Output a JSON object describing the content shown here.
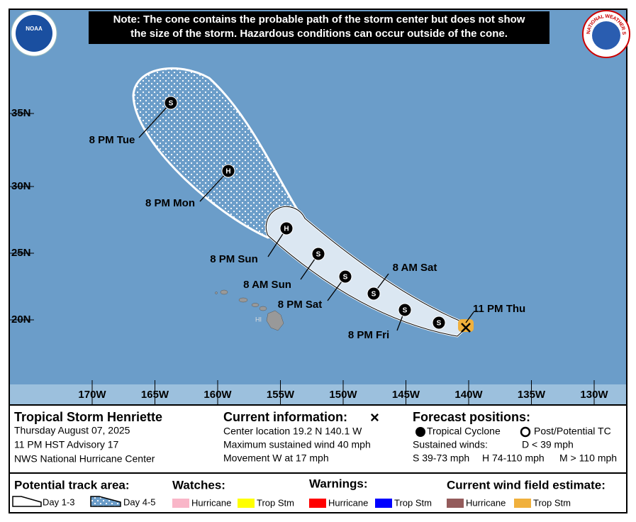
{
  "header": {
    "note": [
      "Note: The cone contains the probable path of the storm center but does not show",
      "the size of the storm. Hazardous conditions can occur outside of the cone."
    ],
    "noaa_logo": "NOAA",
    "nws_logo": "NATIONAL WEATHER SERVICE"
  },
  "map": {
    "lat_labels": [
      "35N",
      "30N",
      "25N",
      "20N"
    ],
    "lon_labels": [
      "170W",
      "165W",
      "160W",
      "155W",
      "150W",
      "145W",
      "140W",
      "135W",
      "130W"
    ],
    "island_label": "HI",
    "points": [
      {
        "time": "8 PM Tue",
        "symbol": "S"
      },
      {
        "time": "8 PM Mon",
        "symbol": "H"
      },
      {
        "time": "8 PM Sun",
        "symbol": "H"
      },
      {
        "time": "8 AM Sun",
        "symbol": "S"
      },
      {
        "time": "8 PM Sat",
        "symbol": "S"
      },
      {
        "time": "8 AM Sat",
        "symbol": "S"
      },
      {
        "time": "8 PM Fri",
        "symbol": "S"
      },
      {
        "time": null,
        "symbol": "S"
      }
    ],
    "current_time": "11 PM Thu"
  },
  "info": {
    "storm": "Tropical Storm Henriette",
    "date": "Thursday August 07, 2025",
    "advisory": "11 PM HST Advisory 17",
    "center": "NWS National Hurricane Center"
  },
  "current": {
    "title": "Current information:",
    "symbol": "×",
    "lines": [
      "Center location 19.2 N 140.1 W",
      "Maximum sustained wind 40 mph",
      "Movement W at 17 mph"
    ]
  },
  "forecast": {
    "title": "Forecast positions:",
    "tropical": "Tropical Cyclone",
    "post": "Post/Potential TC",
    "winds": "Sustained winds:",
    "d": "D < 39 mph",
    "s": "S 39-73 mph",
    "h": "H 74-110 mph",
    "m": "M > 110 mph"
  },
  "legend": {
    "track_title": "Potential track area:",
    "day13": "Day 1-3",
    "day45": "Day 4-5",
    "watches_title": "Watches:",
    "watch_hurricane": "Hurricane",
    "watch_ts": "Trop Stm",
    "warnings_title": "Warnings:",
    "warn_hurricane": "Hurricane",
    "warn_ts": "Trop Stm",
    "wind_title": "Current wind field estimate:",
    "wind_hurricane": "Hurricane",
    "wind_ts": "Trop Stm"
  }
}
